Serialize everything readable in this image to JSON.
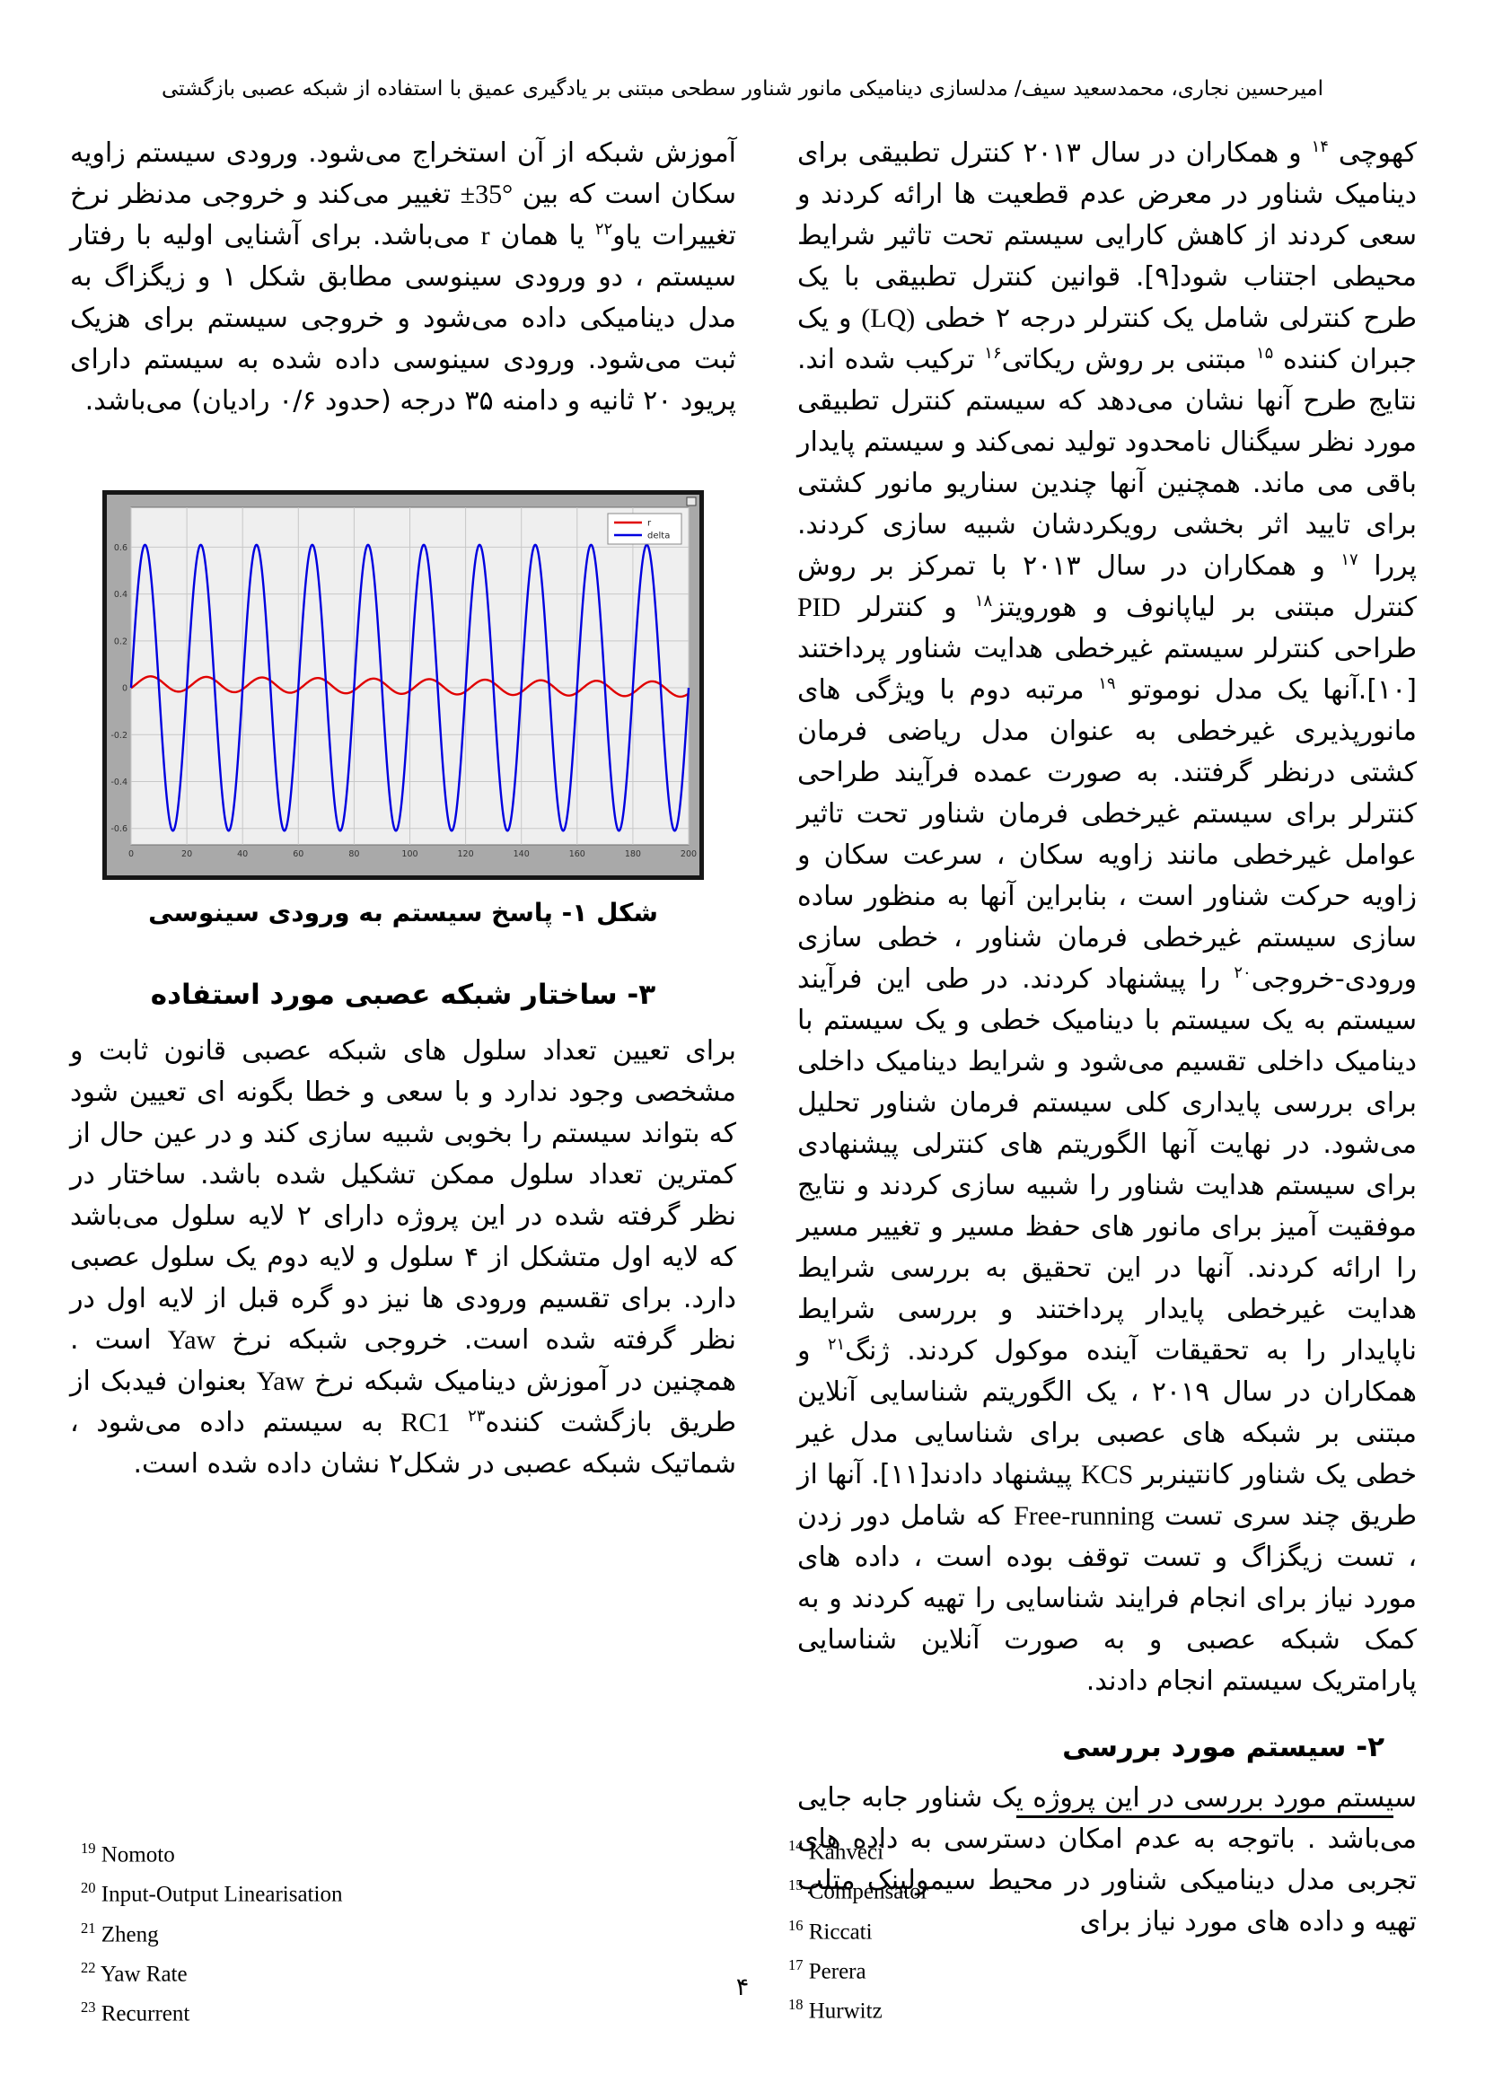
{
  "header": {
    "title": "امیرحسین نجاری، محمدسعید سیف/ مدلسازی دینامیکی مانور شناور سطحی مبتنی بر یادگیری عمیق با استفاده از شبکه عصبی بازگشتی"
  },
  "page_number": "۴",
  "right_column": {
    "paragraph_1": [
      {
        "text": "کهوچی "
      },
      {
        "text": "۱۴",
        "sup": true
      },
      {
        "text": " و همکاران  در سال ۲۰۱۳ کنترل تطبیقی برای دینامیک شناور در معرض عدم قطعیت ها ارائه کردند و سعی کردند از کاهش کارایی سیستم تحت تاثیر شرایط محیطی اجتناب شود[۹]. قوانین کنترل تطبیقی با یک طرح کنترلی شامل یک کنترلر درجه ۲ خطی "
      },
      {
        "text": "(LQ)",
        "ltr": true
      },
      {
        "text": " و یک جبران کننده "
      },
      {
        "text": "۱۵",
        "sup": true
      },
      {
        "text": " مبتنی بر روش ریکاتی"
      },
      {
        "text": "۱۶",
        "sup": true
      },
      {
        "text": " ترکیب شده اند. نتایج طرح آنها نشان می‌دهد که سیستم کنترل تطبیقی مورد نظر سیگنال نامحدود تولید نمی‌کند و سیستم پایدار باقی می ماند. همچنین آنها چندین سناریو مانور کشتی برای تایید اثر بخشی رویکردشان شبیه سازی کردند. پررا "
      },
      {
        "text": "۱۷",
        "sup": true
      },
      {
        "text": " و همکاران در سال ۲۰۱۳ با تمرکز بر روش کنترل مبتنی بر لیاپانوف و هورویتز"
      },
      {
        "text": "۱۸",
        "sup": true
      },
      {
        "text": " و کنترلر "
      },
      {
        "text": "PID",
        "ltr": true
      },
      {
        "text": " طراحی کنترلر سیستم غیرخطی هدایت شناور پرداختند [۱۰].آنها یک مدل نوموتو "
      },
      {
        "text": "۱۹",
        "sup": true
      },
      {
        "text": " مرتبه دوم با ویژگی های مانورپذیری غیرخطی به عنوان مدل ریاضی فرمان کشتی درنظر گرفتند. به صورت عمده فرآیند طراحی کنترلر برای سیستم غیرخطی فرمان شناور تحت تاثیر عوامل غیرخطی مانند زاویه سکان ، سرعت سکان و زاویه حرکت شناور است ، بنابراین آنها به منظور ساده سازی سیستم غیرخطی فرمان شناور ، خطی سازی ورودی-خروجی"
      },
      {
        "text": "۲۰",
        "sup": true
      },
      {
        "text": " را پیشنهاد کردند. در طی این فرآیند سیستم به یک سیستم با دینامیک خطی و یک سیستم با دینامیک داخلی تقسیم می‌شود و شرایط دینامیک داخلی برای بررسی پایداری کلی سیستم فرمان شناور تحلیل می‌شود. در نهایت آنها الگوریتم های کنترلی پیشنهادی برای سیستم هدایت شناور را شبیه سازی کردند و نتایج موفقیت آمیز برای مانور های حفظ مسیر و تغییر مسیر را ارائه کردند. آنها در این تحقیق به بررسی شرایط هدایت غیرخطی پایدار پرداختند و بررسی شرایط ناپایدار را به تحقیقات آینده موکول کردند. ژنگ"
      },
      {
        "text": "۲۱",
        "sup": true
      },
      {
        "text": " و همکاران  در سال ۲۰۱۹ ، یک الگوریتم شناسایی آنلاین مبتنی بر شبکه های عصبی برای شناسایی مدل غیر خطی یک شناور کانتینربر "
      },
      {
        "text": "KCS",
        "ltr": true
      },
      {
        "text": " پیشنهاد دادند[۱۱]. آنها از طریق چند سری تست "
      },
      {
        "text": "Free-running",
        "ltr": true
      },
      {
        "text": " که شامل دور زدن ، تست زیگزاگ و تست توقف بوده است ، داده های مورد نیاز برای انجام فرایند شناسایی را تهیه کردند و به کمک شبکه عصبی و به صورت آنلاین شناسایی پارامتریک سیستم انجام دادند."
      }
    ],
    "section_2_heading": "۲- سیستم مورد بررسی",
    "paragraph_2": [
      {
        "text": "سیستم مورد بررسی در این پروژه یک شناور جابه جایی می‌باشد . باتوجه به عدم امکان دسترسی به داده های تجربی مدل دینامیکی شناور در محیط سیمولینک متلب تهیه و داده های مورد نیاز برای"
      }
    ]
  },
  "left_column": {
    "paragraph_1": [
      {
        "text": "آموزش شبکه از آن استخراج می‌شود. ورودی سیستم زاویه سکان است که بین "
      },
      {
        "text": "±35°",
        "ltr": true
      },
      {
        "text": " تغییر می‌کند و خروجی مدنظر نرخ تغییرات یاو"
      },
      {
        "text": "۲۲",
        "sup": true
      },
      {
        "text": " یا همان "
      },
      {
        "text": "r",
        "ltr": true
      },
      {
        "text": " می‌باشد. برای آشنایی اولیه با رفتار سیستم ، دو ورودی سینوسی مطابق شکل ۱ و زیگزاگ  به مدل دینامیکی داده می‌شود و خروجی سیستم برای هزیک ثبت می‌شود. ورودی سینوسی داده شده به سیستم دارای پریود ۲۰ ثانیه و دامنه ۳۵ درجه (حدود ۰/۶ رادیان) می‌باشد."
      }
    ],
    "figure_caption": "شکل ۱- پاسخ سیستم به ورودی سینوسی",
    "section_3_heading": "۳- ساختار شبکه عصبی مورد استفاده",
    "paragraph_2": [
      {
        "text": "برای تعیین تعداد سلول های شبکه عصبی قانون ثابت و مشخصی وجود ندارد و با سعی و خطا بگونه ای تعیین شود که بتواند سیستم را بخوبی شبیه سازی کند و در عین حال از کمترین تعداد سلول ممکن تشکیل شده باشد. ساختار در نظر گرفته شده در این پروژه دارای ۲ لایه سلول می‌باشد که لایه اول متشکل از ۴ سلول و لایه دوم یک سلول عصبی دارد. برای تقسیم ورودی ها نیز دو گره قبل از لایه اول در نظر گرفته شده است. خروجی شبکه نرخ "
      },
      {
        "text": "Yaw",
        "ltr": true
      },
      {
        "text": " است . همچنین در آموزش دینامیک شبکه نرخ "
      },
      {
        "text": "Yaw",
        "ltr": true
      },
      {
        "text": "  بعنوان فیدبک از طریق بازگشت کننده"
      },
      {
        "text": "۲۳",
        "sup": true
      },
      {
        "text": " "
      },
      {
        "text": "RC1",
        "ltr": true
      },
      {
        "text": " به سیستم داده می‌شود ، شماتیک شبکه عصبی در شکل۲  نشان داده شده است."
      }
    ]
  },
  "footnotes": {
    "right": [
      {
        "num": "14",
        "label": "Kahveci"
      },
      {
        "num": "15",
        "label": "Compensator"
      },
      {
        "num": "16",
        "label": "Riccati"
      },
      {
        "num": "17",
        "label": "Perera"
      },
      {
        "num": "18",
        "label": "Hurwitz"
      }
    ],
    "left": [
      {
        "num": "19",
        "label": "Nomoto"
      },
      {
        "num": "20",
        "label": "Input-Output Linearisation"
      },
      {
        "num": "21",
        "label": "Zheng"
      },
      {
        "num": "22",
        "label": "Yaw Rate"
      },
      {
        "num": "23",
        "label": "Recurrent"
      }
    ]
  },
  "chart_data": {
    "type": "line",
    "title": "",
    "xlabel": "",
    "ylabel": "",
    "xlim": [
      0,
      200
    ],
    "ylim": [
      -0.67,
      0.77
    ],
    "x_ticks": [
      0,
      20,
      40,
      60,
      80,
      100,
      120,
      140,
      160,
      180,
      200
    ],
    "y_ticks": [
      0.6,
      0.4,
      0.2,
      0,
      -0.2,
      -0.4,
      -0.6
    ],
    "grid": true,
    "legend_position": "top-right",
    "sample_step": 0.25,
    "series": [
      {
        "name": "r",
        "color": "#e00000",
        "model": "sine",
        "amplitude": 0.032,
        "period": 20,
        "phase_shift": 2,
        "offset": 0.0175,
        "offset_drift": -0.000118
      },
      {
        "name": "delta",
        "color": "#0000e0",
        "model": "sine",
        "amplitude": 0.61,
        "period": 20,
        "phase_shift": 0,
        "offset": 0,
        "offset_drift": 0
      }
    ],
    "colors": {
      "figure_bg": "#a9a9a9",
      "plot_bg": "#efefef",
      "grid": "#c7c7c7",
      "axis": "#707070",
      "tick_text": "#333333",
      "legend_bg": "#ffffff",
      "legend_border": "#888888"
    }
  }
}
